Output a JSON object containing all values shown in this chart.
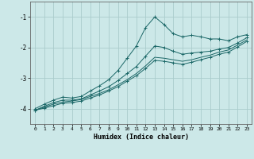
{
  "xlabel": "Humidex (Indice chaleur)",
  "background_color": "#cce8e8",
  "grid_color": "#aacccc",
  "line_color": "#1a6666",
  "xlim": [
    -0.5,
    23.5
  ],
  "ylim": [
    -4.5,
    -0.5
  ],
  "yticks": [
    -4,
    -3,
    -2,
    -1
  ],
  "xticks": [
    0,
    1,
    2,
    3,
    4,
    5,
    6,
    7,
    8,
    9,
    10,
    11,
    12,
    13,
    14,
    15,
    16,
    17,
    18,
    19,
    20,
    21,
    22,
    23
  ],
  "lines": [
    {
      "x": [
        0,
        1,
        2,
        3,
        4,
        5,
        6,
        7,
        8,
        9,
        10,
        11,
        12,
        13,
        14,
        15,
        16,
        17,
        18,
        19,
        20,
        21,
        22,
        23
      ],
      "y": [
        -4.0,
        -3.85,
        -3.72,
        -3.62,
        -3.65,
        -3.6,
        -3.42,
        -3.25,
        -3.05,
        -2.75,
        -2.35,
        -1.95,
        -1.35,
        -1.0,
        -1.25,
        -1.55,
        -1.65,
        -1.6,
        -1.65,
        -1.72,
        -1.72,
        -1.78,
        -1.65,
        -1.58
      ],
      "marker": "+"
    },
    {
      "x": [
        0,
        1,
        2,
        3,
        4,
        5,
        6,
        7,
        8,
        9,
        10,
        11,
        12,
        13,
        14,
        15,
        16,
        17,
        18,
        19,
        20,
        21,
        22,
        23
      ],
      "y": [
        -4.05,
        -3.92,
        -3.8,
        -3.72,
        -3.72,
        -3.68,
        -3.55,
        -3.42,
        -3.28,
        -3.08,
        -2.85,
        -2.62,
        -2.28,
        -1.95,
        -2.0,
        -2.12,
        -2.22,
        -2.18,
        -2.15,
        -2.12,
        -2.05,
        -2.0,
        -1.85,
        -1.68
      ],
      "marker": "+"
    },
    {
      "x": [
        0,
        1,
        2,
        3,
        4,
        5,
        6,
        7,
        8,
        9,
        10,
        11,
        12,
        13,
        14,
        15,
        16,
        17,
        18,
        19,
        20,
        21,
        22,
        23
      ],
      "y": [
        -4.05,
        -3.95,
        -3.85,
        -3.78,
        -3.75,
        -3.7,
        -3.6,
        -3.5,
        -3.38,
        -3.22,
        -3.05,
        -2.85,
        -2.6,
        -2.32,
        -2.35,
        -2.4,
        -2.45,
        -2.4,
        -2.32,
        -2.25,
        -2.15,
        -2.08,
        -1.92,
        -1.75
      ],
      "marker": null
    },
    {
      "x": [
        0,
        1,
        2,
        3,
        4,
        5,
        6,
        7,
        8,
        9,
        10,
        11,
        12,
        13,
        14,
        15,
        16,
        17,
        18,
        19,
        20,
        21,
        22,
        23
      ],
      "y": [
        -4.05,
        -3.98,
        -3.9,
        -3.82,
        -3.8,
        -3.75,
        -3.65,
        -3.55,
        -3.42,
        -3.28,
        -3.1,
        -2.92,
        -2.68,
        -2.42,
        -2.45,
        -2.5,
        -2.55,
        -2.48,
        -2.4,
        -2.32,
        -2.22,
        -2.15,
        -1.98,
        -1.8
      ],
      "marker": "+"
    }
  ]
}
